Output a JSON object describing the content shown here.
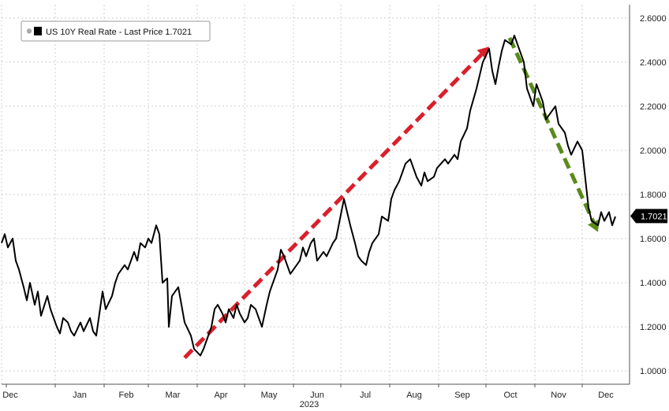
{
  "chart_data": {
    "type": "line",
    "title": "",
    "xlabel": "2023",
    "ylabel": "",
    "legend": {
      "label": "US 10Y Real Rate - Last Price 1.7021",
      "placement": "top-left"
    },
    "last_price_label": "1.7021",
    "last_price": 1.7021,
    "ylim": [
      0.94,
      2.66
    ],
    "yticks": [
      "1.0000",
      "1.2000",
      "1.4000",
      "1.6000",
      "1.8000",
      "2.0000",
      "2.2000",
      "2.4000",
      "2.6000"
    ],
    "ytick_values": [
      1.0,
      1.2,
      1.4,
      1.6,
      1.8,
      2.0,
      2.2,
      2.4,
      2.6
    ],
    "xticks": [
      "Dec",
      "Jan",
      "Feb",
      "Mar",
      "Apr",
      "May",
      "Jun",
      "Jul",
      "Aug",
      "Sep",
      "Oct",
      "Nov",
      "Dec"
    ],
    "xlim": [
      "2022-11-28",
      "2023-12-31"
    ],
    "grid": true,
    "colors": {
      "line": "#000000",
      "up_arrow": "#d9202b",
      "down_arrow": "#5a8a1a",
      "price_badge": "#000000"
    },
    "annotations": [
      {
        "type": "dashed-arrow",
        "color": "#d9202b",
        "from": {
          "x": "2023-03-24",
          "y": 1.06
        },
        "to": {
          "x": "2023-10-03",
          "y": 2.47
        }
      },
      {
        "type": "dashed-arrow",
        "color": "#5a8a1a",
        "from": {
          "x": "2023-10-16",
          "y": 2.51
        },
        "to": {
          "x": "2023-12-11",
          "y": 1.63
        }
      }
    ],
    "series": [
      {
        "name": "US 10Y Real Rate",
        "points": [
          [
            "2022-11-28",
            1.58
          ],
          [
            "2022-11-30",
            1.62
          ],
          [
            "2022-12-02",
            1.56
          ],
          [
            "2022-12-05",
            1.6
          ],
          [
            "2022-12-07",
            1.5
          ],
          [
            "2022-12-09",
            1.46
          ],
          [
            "2022-12-12",
            1.38
          ],
          [
            "2022-12-14",
            1.32
          ],
          [
            "2022-12-16",
            1.4
          ],
          [
            "2022-12-19",
            1.3
          ],
          [
            "2022-12-21",
            1.36
          ],
          [
            "2022-12-23",
            1.25
          ],
          [
            "2022-12-27",
            1.34
          ],
          [
            "2022-12-29",
            1.28
          ],
          [
            "2023-01-02",
            1.2
          ],
          [
            "2023-01-04",
            1.17
          ],
          [
            "2023-01-06",
            1.24
          ],
          [
            "2023-01-09",
            1.22
          ],
          [
            "2023-01-11",
            1.18
          ],
          [
            "2023-01-13",
            1.16
          ],
          [
            "2023-01-17",
            1.22
          ],
          [
            "2023-01-19",
            1.18
          ],
          [
            "2023-01-23",
            1.24
          ],
          [
            "2023-01-25",
            1.18
          ],
          [
            "2023-01-27",
            1.16
          ],
          [
            "2023-01-31",
            1.36
          ],
          [
            "2023-02-02",
            1.28
          ],
          [
            "2023-02-06",
            1.34
          ],
          [
            "2023-02-08",
            1.4
          ],
          [
            "2023-02-10",
            1.44
          ],
          [
            "2023-02-14",
            1.48
          ],
          [
            "2023-02-16",
            1.46
          ],
          [
            "2023-02-20",
            1.54
          ],
          [
            "2023-02-22",
            1.5
          ],
          [
            "2023-02-24",
            1.58
          ],
          [
            "2023-02-27",
            1.56
          ],
          [
            "2023-03-01",
            1.6
          ],
          [
            "2023-03-03",
            1.58
          ],
          [
            "2023-03-06",
            1.66
          ],
          [
            "2023-03-08",
            1.62
          ],
          [
            "2023-03-10",
            1.4
          ],
          [
            "2023-03-13",
            1.42
          ],
          [
            "2023-03-14",
            1.2
          ],
          [
            "2023-03-16",
            1.34
          ],
          [
            "2023-03-20",
            1.38
          ],
          [
            "2023-03-22",
            1.3
          ],
          [
            "2023-03-24",
            1.22
          ],
          [
            "2023-03-28",
            1.16
          ],
          [
            "2023-03-30",
            1.1
          ],
          [
            "2023-04-03",
            1.07
          ],
          [
            "2023-04-05",
            1.1
          ],
          [
            "2023-04-07",
            1.14
          ],
          [
            "2023-04-10",
            1.2
          ],
          [
            "2023-04-12",
            1.28
          ],
          [
            "2023-04-14",
            1.3
          ],
          [
            "2023-04-17",
            1.26
          ],
          [
            "2023-04-19",
            1.22
          ],
          [
            "2023-04-21",
            1.28
          ],
          [
            "2023-04-24",
            1.24
          ],
          [
            "2023-04-26",
            1.3
          ],
          [
            "2023-04-28",
            1.26
          ],
          [
            "2023-05-01",
            1.22
          ],
          [
            "2023-05-03",
            1.24
          ],
          [
            "2023-05-05",
            1.3
          ],
          [
            "2023-05-08",
            1.28
          ],
          [
            "2023-05-10",
            1.24
          ],
          [
            "2023-05-12",
            1.2
          ],
          [
            "2023-05-15",
            1.3
          ],
          [
            "2023-05-17",
            1.36
          ],
          [
            "2023-05-19",
            1.4
          ],
          [
            "2023-05-22",
            1.46
          ],
          [
            "2023-05-24",
            1.55
          ],
          [
            "2023-05-26",
            1.52
          ],
          [
            "2023-05-30",
            1.44
          ],
          [
            "2023-06-01",
            1.46
          ],
          [
            "2023-06-05",
            1.5
          ],
          [
            "2023-06-07",
            1.56
          ],
          [
            "2023-06-09",
            1.52
          ],
          [
            "2023-06-12",
            1.58
          ],
          [
            "2023-06-14",
            1.6
          ],
          [
            "2023-06-16",
            1.5
          ],
          [
            "2023-06-20",
            1.54
          ],
          [
            "2023-06-22",
            1.52
          ],
          [
            "2023-06-26",
            1.58
          ],
          [
            "2023-06-28",
            1.6
          ],
          [
            "2023-07-03",
            1.78
          ],
          [
            "2023-07-05",
            1.72
          ],
          [
            "2023-07-07",
            1.66
          ],
          [
            "2023-07-10",
            1.58
          ],
          [
            "2023-07-12",
            1.52
          ],
          [
            "2023-07-14",
            1.5
          ],
          [
            "2023-07-17",
            1.48
          ],
          [
            "2023-07-19",
            1.54
          ],
          [
            "2023-07-21",
            1.58
          ],
          [
            "2023-07-25",
            1.62
          ],
          [
            "2023-07-27",
            1.7
          ],
          [
            "2023-07-31",
            1.68
          ],
          [
            "2023-08-02",
            1.78
          ],
          [
            "2023-08-04",
            1.82
          ],
          [
            "2023-08-07",
            1.86
          ],
          [
            "2023-08-09",
            1.9
          ],
          [
            "2023-08-11",
            1.94
          ],
          [
            "2023-08-14",
            1.96
          ],
          [
            "2023-08-16",
            1.92
          ],
          [
            "2023-08-18",
            1.88
          ],
          [
            "2023-08-21",
            1.84
          ],
          [
            "2023-08-23",
            1.9
          ],
          [
            "2023-08-25",
            1.86
          ],
          [
            "2023-08-29",
            1.88
          ],
          [
            "2023-08-31",
            1.92
          ],
          [
            "2023-09-05",
            1.96
          ],
          [
            "2023-09-07",
            1.94
          ],
          [
            "2023-09-11",
            1.98
          ],
          [
            "2023-09-13",
            1.96
          ],
          [
            "2023-09-15",
            2.04
          ],
          [
            "2023-09-19",
            2.1
          ],
          [
            "2023-09-21",
            2.18
          ],
          [
            "2023-09-25",
            2.28
          ],
          [
            "2023-09-27",
            2.34
          ],
          [
            "2023-09-29",
            2.4
          ],
          [
            "2023-10-03",
            2.46
          ],
          [
            "2023-10-05",
            2.36
          ],
          [
            "2023-10-07",
            2.3
          ],
          [
            "2023-10-09",
            2.38
          ],
          [
            "2023-10-11",
            2.45
          ],
          [
            "2023-10-13",
            2.5
          ],
          [
            "2023-10-17",
            2.48
          ],
          [
            "2023-10-19",
            2.52
          ],
          [
            "2023-10-23",
            2.44
          ],
          [
            "2023-10-25",
            2.4
          ],
          [
            "2023-10-27",
            2.28
          ],
          [
            "2023-10-31",
            2.2
          ],
          [
            "2023-11-02",
            2.3
          ],
          [
            "2023-11-06",
            2.22
          ],
          [
            "2023-11-08",
            2.14
          ],
          [
            "2023-11-10",
            2.16
          ],
          [
            "2023-11-14",
            2.2
          ],
          [
            "2023-11-16",
            2.12
          ],
          [
            "2023-11-20",
            2.08
          ],
          [
            "2023-11-22",
            2.02
          ],
          [
            "2023-11-24",
            1.98
          ],
          [
            "2023-11-28",
            2.04
          ],
          [
            "2023-12-01",
            2.0
          ],
          [
            "2023-12-05",
            1.74
          ],
          [
            "2023-12-07",
            1.68
          ],
          [
            "2023-12-11",
            1.66
          ],
          [
            "2023-12-13",
            1.72
          ],
          [
            "2023-12-15",
            1.68
          ],
          [
            "2023-12-18",
            1.72
          ],
          [
            "2023-12-20",
            1.66
          ],
          [
            "2023-12-22",
            1.7
          ]
        ]
      }
    ]
  }
}
